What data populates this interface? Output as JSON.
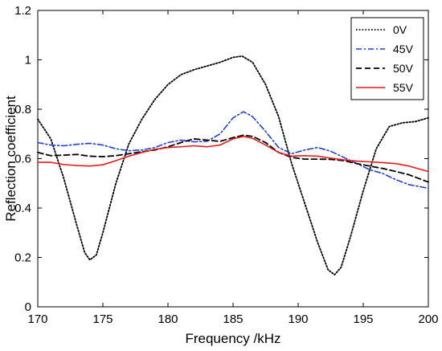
{
  "chart_data": {
    "type": "line",
    "title": "",
    "xlabel": "Frequency /kHz",
    "ylabel": "Reflection coefficient",
    "xlim": [
      170,
      200
    ],
    "ylim": [
      0,
      1.2
    ],
    "xticks": [
      170,
      175,
      180,
      185,
      190,
      195,
      200
    ],
    "yticks": [
      0,
      0.2,
      0.4,
      0.6,
      0.8,
      1,
      1.2
    ],
    "xtick_labels": [
      "170",
      "175",
      "180",
      "185",
      "190",
      "195",
      "200"
    ],
    "ytick_labels": [
      "0",
      "0.2",
      "0.4",
      "0.6",
      "0.8",
      "1",
      "1.2"
    ],
    "grid": false,
    "legend_position": "top-right",
    "series": [
      {
        "name": "0V",
        "color": "#000000",
        "style": "dotted",
        "points": [
          [
            170,
            0.76
          ],
          [
            171,
            0.68
          ],
          [
            172,
            0.52
          ],
          [
            173,
            0.33
          ],
          [
            173.6,
            0.22
          ],
          [
            174,
            0.19
          ],
          [
            174.5,
            0.21
          ],
          [
            175,
            0.3
          ],
          [
            176,
            0.5
          ],
          [
            177,
            0.66
          ],
          [
            178,
            0.76
          ],
          [
            179,
            0.84
          ],
          [
            180,
            0.9
          ],
          [
            181,
            0.94
          ],
          [
            182,
            0.96
          ],
          [
            183,
            0.975
          ],
          [
            184,
            0.99
          ],
          [
            185,
            1.01
          ],
          [
            185.7,
            1.015
          ],
          [
            186.5,
            0.99
          ],
          [
            187.5,
            0.9
          ],
          [
            188.5,
            0.77
          ],
          [
            189.5,
            0.58
          ],
          [
            190.5,
            0.42
          ],
          [
            191.5,
            0.26
          ],
          [
            192.3,
            0.15
          ],
          [
            192.8,
            0.13
          ],
          [
            193.3,
            0.16
          ],
          [
            194,
            0.28
          ],
          [
            195,
            0.47
          ],
          [
            196,
            0.64
          ],
          [
            197,
            0.73
          ],
          [
            198,
            0.745
          ],
          [
            199,
            0.75
          ],
          [
            200,
            0.765
          ]
        ]
      },
      {
        "name": "45V",
        "color": "#1f3fd6",
        "style": "dashdot",
        "points": [
          [
            170,
            0.665
          ],
          [
            171,
            0.655
          ],
          [
            172,
            0.652
          ],
          [
            173,
            0.658
          ],
          [
            174,
            0.662
          ],
          [
            175,
            0.655
          ],
          [
            176,
            0.64
          ],
          [
            177,
            0.632
          ],
          [
            178,
            0.635
          ],
          [
            179,
            0.645
          ],
          [
            180,
            0.665
          ],
          [
            181,
            0.675
          ],
          [
            182,
            0.668
          ],
          [
            183,
            0.67
          ],
          [
            184,
            0.7
          ],
          [
            185,
            0.765
          ],
          [
            185.8,
            0.79
          ],
          [
            186.5,
            0.77
          ],
          [
            187.5,
            0.71
          ],
          [
            188.5,
            0.645
          ],
          [
            189.5,
            0.62
          ],
          [
            190.5,
            0.635
          ],
          [
            191.5,
            0.645
          ],
          [
            192.5,
            0.63
          ],
          [
            193.5,
            0.605
          ],
          [
            194.5,
            0.58
          ],
          [
            195.5,
            0.555
          ],
          [
            196.5,
            0.54
          ],
          [
            197.5,
            0.515
          ],
          [
            198.5,
            0.495
          ],
          [
            200,
            0.48
          ]
        ]
      },
      {
        "name": "50V",
        "color": "#000000",
        "style": "dashed",
        "points": [
          [
            170,
            0.625
          ],
          [
            171,
            0.612
          ],
          [
            172,
            0.614
          ],
          [
            173,
            0.617
          ],
          [
            174,
            0.61
          ],
          [
            175,
            0.608
          ],
          [
            176,
            0.612
          ],
          [
            177,
            0.62
          ],
          [
            178,
            0.628
          ],
          [
            179,
            0.635
          ],
          [
            180,
            0.648
          ],
          [
            181,
            0.665
          ],
          [
            182,
            0.68
          ],
          [
            183,
            0.675
          ],
          [
            184,
            0.67
          ],
          [
            185,
            0.685
          ],
          [
            185.8,
            0.695
          ],
          [
            186.5,
            0.69
          ],
          [
            187.5,
            0.665
          ],
          [
            188.5,
            0.625
          ],
          [
            189.5,
            0.605
          ],
          [
            190.5,
            0.598
          ],
          [
            191.5,
            0.598
          ],
          [
            192.5,
            0.597
          ],
          [
            193.5,
            0.592
          ],
          [
            194.5,
            0.58
          ],
          [
            195.5,
            0.57
          ],
          [
            196.5,
            0.56
          ],
          [
            197.5,
            0.548
          ],
          [
            198.5,
            0.535
          ],
          [
            200,
            0.505
          ]
        ]
      },
      {
        "name": "55V",
        "color": "#e31a1c",
        "style": "solid",
        "points": [
          [
            170,
            0.585
          ],
          [
            171,
            0.585
          ],
          [
            172,
            0.576
          ],
          [
            173,
            0.572
          ],
          [
            174,
            0.57
          ],
          [
            175,
            0.575
          ],
          [
            176,
            0.592
          ],
          [
            177,
            0.61
          ],
          [
            178,
            0.625
          ],
          [
            179,
            0.638
          ],
          [
            180,
            0.645
          ],
          [
            181,
            0.648
          ],
          [
            182,
            0.652
          ],
          [
            183,
            0.648
          ],
          [
            184,
            0.655
          ],
          [
            185,
            0.68
          ],
          [
            185.8,
            0.69
          ],
          [
            186.5,
            0.682
          ],
          [
            187.5,
            0.655
          ],
          [
            188.5,
            0.625
          ],
          [
            189.5,
            0.61
          ],
          [
            190.5,
            0.612
          ],
          [
            191.5,
            0.61
          ],
          [
            192.5,
            0.602
          ],
          [
            193.5,
            0.595
          ],
          [
            194.5,
            0.59
          ],
          [
            195.5,
            0.587
          ],
          [
            196.5,
            0.584
          ],
          [
            197.5,
            0.58
          ],
          [
            198.5,
            0.57
          ],
          [
            200,
            0.548
          ]
        ]
      }
    ]
  }
}
